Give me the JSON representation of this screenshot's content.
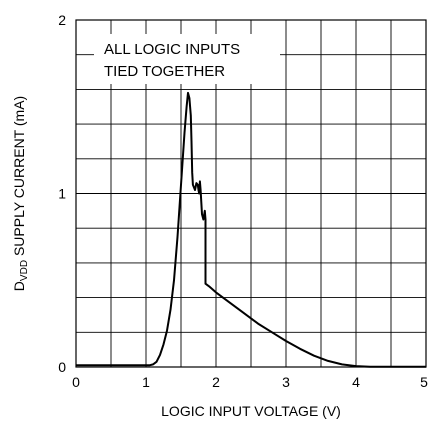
{
  "chart_data": {
    "type": "line",
    "xlabel": "LOGIC INPUT VOLTAGE (V)",
    "ylabel_prefix": "D",
    "ylabel_sub": "VDD",
    "ylabel_rest": " SUPPLY CURRENT (mA)",
    "annotation_lines": [
      "ALL LOGIC INPUTS",
      "TIED TOGETHER"
    ],
    "xlim": [
      0,
      5
    ],
    "ylim": [
      0,
      2
    ],
    "x_major_ticks": [
      0,
      1,
      2,
      3,
      4,
      5
    ],
    "x_tick_labels": [
      "0",
      "1",
      "2",
      "3",
      "4",
      "5"
    ],
    "y_major_ticks": [
      0,
      1,
      2
    ],
    "y_tick_labels": [
      "0",
      "1",
      "2"
    ],
    "grid": true,
    "grid_x_step": 0.5,
    "grid_y_step": 0.2,
    "series": [
      {
        "x": [
          0.0,
          0.5,
          0.9,
          1.0,
          1.05,
          1.1,
          1.15,
          1.2,
          1.25,
          1.3,
          1.35,
          1.4,
          1.45,
          1.5,
          1.55,
          1.58,
          1.6,
          1.62,
          1.63,
          1.64,
          1.65,
          1.66,
          1.67,
          1.7,
          1.72,
          1.74,
          1.75,
          1.76,
          1.77,
          1.78,
          1.79,
          1.8,
          1.82,
          1.84,
          1.85,
          1.85,
          1.9,
          2.0,
          2.2,
          2.4,
          2.6,
          2.8,
          3.0,
          3.2,
          3.4,
          3.6,
          3.8,
          4.0,
          4.2,
          4.4,
          4.6,
          4.8,
          5.0
        ],
        "y": [
          0.01,
          0.01,
          0.01,
          0.01,
          0.01,
          0.015,
          0.03,
          0.07,
          0.13,
          0.21,
          0.33,
          0.5,
          0.75,
          1.05,
          1.35,
          1.5,
          1.58,
          1.55,
          1.5,
          1.45,
          1.3,
          1.12,
          1.05,
          1.02,
          1.06,
          1.05,
          1.02,
          1.0,
          1.07,
          1.02,
          0.95,
          0.88,
          0.85,
          0.9,
          0.85,
          0.48,
          0.465,
          0.43,
          0.37,
          0.31,
          0.25,
          0.2,
          0.15,
          0.105,
          0.065,
          0.035,
          0.015,
          0.005,
          0.002,
          0.001,
          0.001,
          0.001,
          0.001
        ]
      }
    ]
  }
}
